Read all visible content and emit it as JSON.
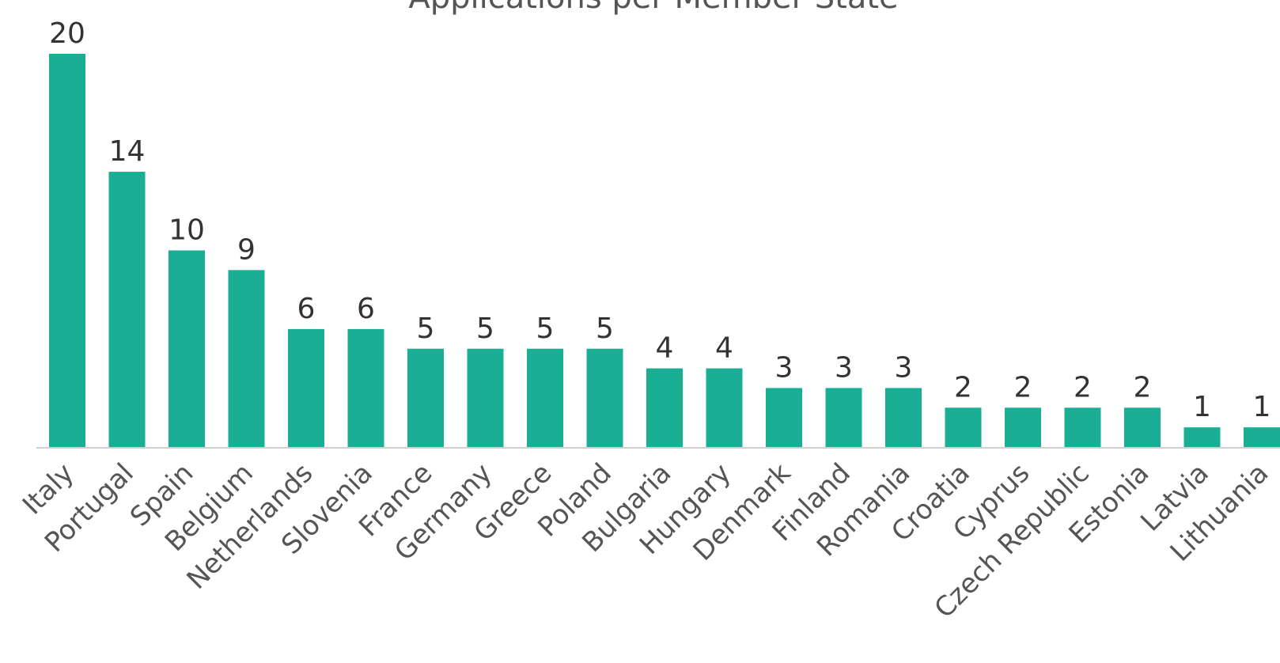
{
  "chart_data": {
    "type": "bar",
    "title": "Applications per Member State",
    "categories": [
      "Italy",
      "Portugal",
      "Spain",
      "Belgium",
      "Netherlands",
      "Slovenia",
      "France",
      "Germany",
      "Greece",
      "Poland",
      "Bulgaria",
      "Hungary",
      "Denmark",
      "Finland",
      "Romania",
      "Croatia",
      "Cyprus",
      "Czech Republic",
      "Estonia",
      "Latvia",
      "Lithuania"
    ],
    "values": [
      20,
      14,
      10,
      9,
      6,
      6,
      5,
      5,
      5,
      5,
      4,
      4,
      3,
      3,
      3,
      2,
      2,
      2,
      2,
      1,
      1
    ],
    "color": "#1aae94"
  }
}
